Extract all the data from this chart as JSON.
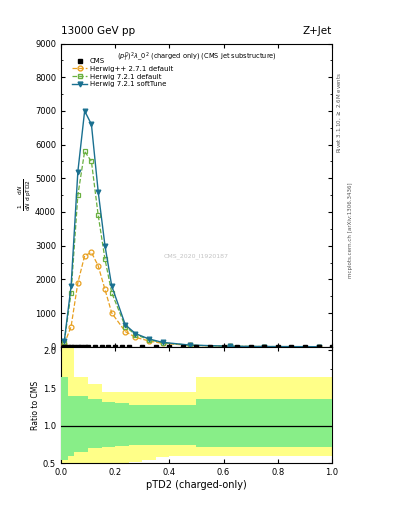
{
  "title_left": "13000 GeV pp",
  "title_right": "Z+Jet",
  "plot_title": "$(p_T^D)^2\\lambda\\_0^2$ (charged only) (CMS jet substructure)",
  "xlabel": "pTD2 (charged-only)",
  "ylabel_ratio": "Ratio to CMS",
  "watermark": "CMS_2020_I1920187",
  "xlim": [
    0.0,
    1.0
  ],
  "ylim_main": [
    0,
    9000
  ],
  "ylim_ratio": [
    0.5,
    2.05
  ],
  "yticks_main": [
    0,
    1000,
    2000,
    3000,
    4000,
    5000,
    6000,
    7000,
    8000,
    9000
  ],
  "yticks_ratio": [
    0.5,
    1.0,
    1.5,
    2.0
  ],
  "color_herwig_pp": "#e8a020",
  "color_herwig721": "#6ab040",
  "color_herwig721s": "#1a7090",
  "hpp_x": [
    0.0125,
    0.0375,
    0.0625,
    0.0875,
    0.1125,
    0.1375,
    0.1625,
    0.1875,
    0.2375,
    0.275,
    0.325,
    0.375,
    0.475,
    0.625,
    0.75,
    0.95
  ],
  "hpp_y": [
    80,
    600,
    1900,
    2700,
    2800,
    2400,
    1700,
    1000,
    450,
    280,
    170,
    100,
    40,
    12,
    5,
    1
  ],
  "h721_x": [
    0.0125,
    0.0375,
    0.0625,
    0.0875,
    0.1125,
    0.1375,
    0.1625,
    0.1875,
    0.2375,
    0.275,
    0.325,
    0.375,
    0.475,
    0.625,
    0.75,
    0.95
  ],
  "h721_y": [
    150,
    1600,
    4500,
    5800,
    5500,
    3900,
    2600,
    1600,
    600,
    360,
    210,
    120,
    45,
    14,
    6,
    1.5
  ],
  "h721s_x": [
    0.0125,
    0.0375,
    0.0625,
    0.0875,
    0.1125,
    0.1375,
    0.1625,
    0.1875,
    0.2375,
    0.275,
    0.325,
    0.375,
    0.475,
    0.625,
    0.75,
    0.95
  ],
  "h721s_y": [
    170,
    1800,
    5200,
    7000,
    6600,
    4600,
    3000,
    1800,
    650,
    390,
    230,
    130,
    50,
    15,
    6.5,
    1.5
  ],
  "cms_sq_x": [
    0.0125,
    0.025,
    0.0375,
    0.05,
    0.0625,
    0.075,
    0.0875,
    0.1,
    0.125,
    0.15,
    0.175,
    0.2,
    0.225,
    0.25,
    0.3,
    0.35,
    0.4,
    0.45,
    0.5,
    0.55,
    0.6,
    0.65,
    0.7,
    0.75,
    0.8,
    0.85,
    0.9,
    0.95,
    1.0
  ],
  "ratio_x_edges": [
    0.0,
    0.025,
    0.05,
    0.1,
    0.15,
    0.2,
    0.25,
    0.3,
    0.35,
    0.4,
    0.45,
    0.5,
    0.6,
    0.7,
    1.0
  ],
  "yellow_top": [
    2.05,
    2.05,
    1.65,
    1.55,
    1.45,
    1.45,
    1.45,
    1.45,
    1.45,
    1.45,
    1.45,
    1.65,
    1.65,
    1.65,
    1.65
  ],
  "yellow_bot": [
    0.5,
    0.5,
    0.5,
    0.5,
    0.5,
    0.5,
    0.52,
    0.55,
    0.58,
    0.6,
    0.6,
    0.6,
    0.6,
    0.6,
    0.6
  ],
  "green_top": [
    1.65,
    1.4,
    1.4,
    1.35,
    1.32,
    1.3,
    1.28,
    1.28,
    1.28,
    1.28,
    1.28,
    1.35,
    1.35,
    1.35,
    1.35
  ],
  "green_bot": [
    0.55,
    0.6,
    0.65,
    0.7,
    0.72,
    0.73,
    0.75,
    0.75,
    0.75,
    0.75,
    0.75,
    0.72,
    0.72,
    0.72,
    0.72
  ]
}
